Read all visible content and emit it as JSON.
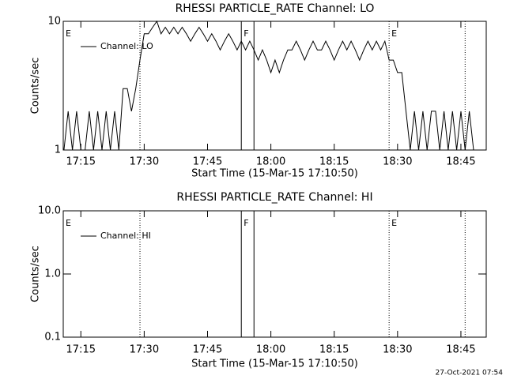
{
  "chart_data": [
    {
      "type": "line",
      "title": "RHESSI PARTICLE_RATE Channel: LO",
      "xlabel": "Start Time (15-Mar-15 17:10:50)",
      "ylabel": "Counts/sec",
      "x": [
        "17:11",
        "17:12",
        "17:13",
        "17:14",
        "17:15",
        "17:16",
        "17:17",
        "17:18",
        "17:19",
        "17:20",
        "17:21",
        "17:22",
        "17:23",
        "17:24",
        "17:25",
        "17:26",
        "17:27",
        "17:28",
        "17:29",
        "17:30",
        "17:31",
        "17:32",
        "17:33",
        "17:34",
        "17:35",
        "17:36",
        "17:37",
        "17:38",
        "17:39",
        "17:40",
        "17:41",
        "17:42",
        "17:43",
        "17:44",
        "17:45",
        "17:46",
        "17:47",
        "17:48",
        "17:49",
        "17:50",
        "17:51",
        "17:52",
        "17:53",
        "17:54",
        "17:55",
        "17:56",
        "17:57",
        "17:58",
        "17:59",
        "18:00",
        "18:01",
        "18:02",
        "18:03",
        "18:04",
        "18:05",
        "18:06",
        "18:07",
        "18:08",
        "18:09",
        "18:10",
        "18:11",
        "18:12",
        "18:13",
        "18:14",
        "18:15",
        "18:16",
        "18:17",
        "18:18",
        "18:19",
        "18:20",
        "18:21",
        "18:22",
        "18:23",
        "18:24",
        "18:25",
        "18:26",
        "18:27",
        "18:28",
        "18:29",
        "18:30",
        "18:31",
        "18:32",
        "18:33",
        "18:34",
        "18:35",
        "18:36",
        "18:37",
        "18:38",
        "18:39",
        "18:40",
        "18:41",
        "18:42",
        "18:43",
        "18:44",
        "18:45",
        "18:46",
        "18:47",
        "18:48"
      ],
      "series": [
        {
          "name": "Channel: LO",
          "color": "#000000",
          "values": [
            1,
            2,
            1,
            2,
            1,
            1,
            2,
            1,
            2,
            1,
            2,
            1,
            2,
            1,
            3,
            3,
            2,
            3,
            5,
            8,
            8,
            9,
            10,
            8,
            9,
            8,
            9,
            8,
            9,
            8,
            7,
            8,
            9,
            8,
            7,
            8,
            7,
            6,
            7,
            8,
            7,
            6,
            7,
            6,
            7,
            6,
            5,
            6,
            5,
            4,
            5,
            4,
            5,
            6,
            6,
            7,
            6,
            5,
            6,
            7,
            6,
            6,
            7,
            6,
            5,
            6,
            7,
            6,
            7,
            6,
            5,
            6,
            7,
            6,
            7,
            6,
            7,
            5,
            5,
            4,
            4,
            2,
            1,
            2,
            1,
            2,
            1,
            2,
            2,
            1,
            2,
            1,
            2,
            1,
            2,
            1,
            2,
            1
          ]
        }
      ],
      "xlim": [
        "17:10:50",
        "18:51"
      ],
      "xticks": [
        "17:15",
        "17:30",
        "17:45",
        "18:00",
        "18:15",
        "18:30",
        "18:45"
      ],
      "ylim": [
        1,
        10
      ],
      "yticks": [
        1,
        10
      ],
      "log_y": true,
      "annotations": [
        {
          "text": "E",
          "x": "17:10:50"
        },
        {
          "text": "F",
          "x": "17:53"
        },
        {
          "text": "E",
          "x": "18:28"
        }
      ],
      "event_lines": [
        {
          "x": "17:29",
          "style": "dotted"
        },
        {
          "x": "17:53",
          "style": "solid"
        },
        {
          "x": "17:56",
          "style": "solid"
        },
        {
          "x": "18:28",
          "style": "dotted"
        },
        {
          "x": "18:46",
          "style": "dotted"
        }
      ]
    },
    {
      "type": "line",
      "title": "RHESSI PARTICLE_RATE Channel: HI",
      "xlabel": "Start Time (15-Mar-15 17:10:50)",
      "ylabel": "Counts/sec",
      "x": [],
      "series": [
        {
          "name": "Channel: HI",
          "color": "#000000",
          "values": []
        }
      ],
      "xlim": [
        "17:10:50",
        "18:51"
      ],
      "xticks": [
        "17:15",
        "17:30",
        "17:45",
        "18:00",
        "18:15",
        "18:30",
        "18:45"
      ],
      "ylim": [
        0.1,
        10
      ],
      "yticks": [
        0.1,
        {
          "value": 1,
          "label": "1.0"
        },
        {
          "value": 10,
          "label": "10.0"
        }
      ],
      "log_y": true,
      "annotations": [
        {
          "text": "E",
          "x": "17:10:50"
        },
        {
          "text": "F",
          "x": "17:53"
        },
        {
          "text": "E",
          "x": "18:28"
        }
      ],
      "event_lines": [
        {
          "x": "17:29",
          "style": "dotted"
        },
        {
          "x": "17:53",
          "style": "solid"
        },
        {
          "x": "17:56",
          "style": "solid"
        },
        {
          "x": "18:28",
          "style": "dotted"
        },
        {
          "x": "18:46",
          "style": "dotted"
        }
      ]
    }
  ],
  "footer": "27-Oct-2021 07:54"
}
